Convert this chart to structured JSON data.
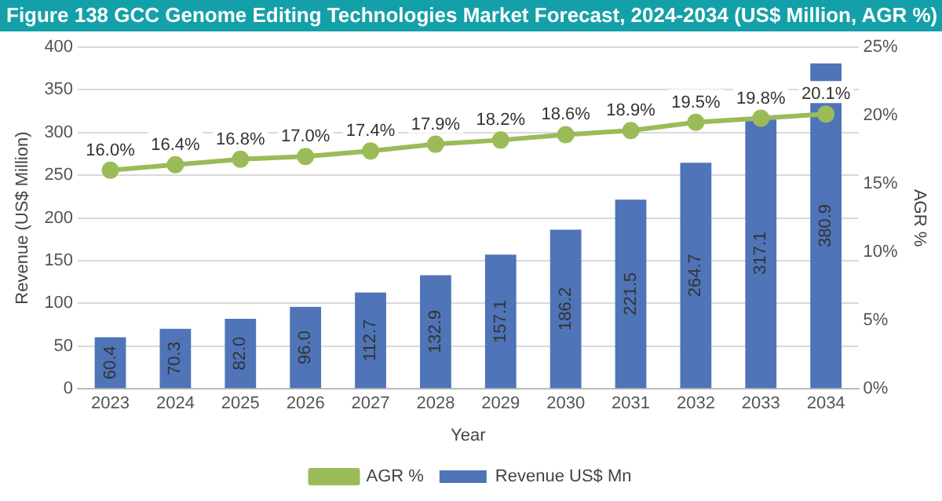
{
  "chart_data": {
    "type": "bar",
    "title": "Figure 138 GCC Genome Editing Technologies Market Forecast, 2024-2034 (US$ Million, AGR %)",
    "xlabel": "Year",
    "ylabel": "Revenue (US$ Million)",
    "y2label": "AGR %",
    "categories": [
      "2023",
      "2024",
      "2025",
      "2026",
      "2027",
      "2028",
      "2029",
      "2030",
      "2031",
      "2032",
      "2033",
      "2034"
    ],
    "series": [
      {
        "name": "Revenue US$ Mn",
        "color": "#4f74b8",
        "values": [
          60.4,
          70.3,
          82.0,
          96.0,
          112.7,
          132.9,
          157.1,
          186.2,
          221.5,
          264.7,
          317.1,
          380.9
        ],
        "value_labels": [
          "60.4",
          "70.3",
          "82.0",
          "96.0",
          "112.7",
          "132.9",
          "157.1",
          "186.2",
          "221.5",
          "264.7",
          "317.1",
          "380.9"
        ]
      },
      {
        "name": "AGR %",
        "type": "line",
        "axis": "y2",
        "color": "#9bbb59",
        "values": [
          16.0,
          16.4,
          16.8,
          17.0,
          17.4,
          17.9,
          18.2,
          18.6,
          18.9,
          19.5,
          19.8,
          20.1
        ],
        "value_labels": [
          "16.0%",
          "16.4%",
          "16.8%",
          "17.0%",
          "17.4%",
          "17.9%",
          "18.2%",
          "18.6%",
          "18.9%",
          "19.5%",
          "19.8%",
          "20.1%"
        ]
      }
    ],
    "ylim": [
      0,
      400
    ],
    "yticks": [
      0,
      50,
      100,
      150,
      200,
      250,
      300,
      350,
      400
    ],
    "y2lim": [
      0,
      25
    ],
    "y2ticks": [
      {
        "value": 0,
        "label": "0%"
      },
      {
        "value": 5,
        "label": "5%"
      },
      {
        "value": 10,
        "label": "10%"
      },
      {
        "value": 15,
        "label": "15%"
      },
      {
        "value": 20,
        "label": "20%"
      },
      {
        "value": 25,
        "label": "25%"
      }
    ],
    "grid": "y",
    "legend": "bottom",
    "marker": "circle",
    "line_style": "solid"
  }
}
